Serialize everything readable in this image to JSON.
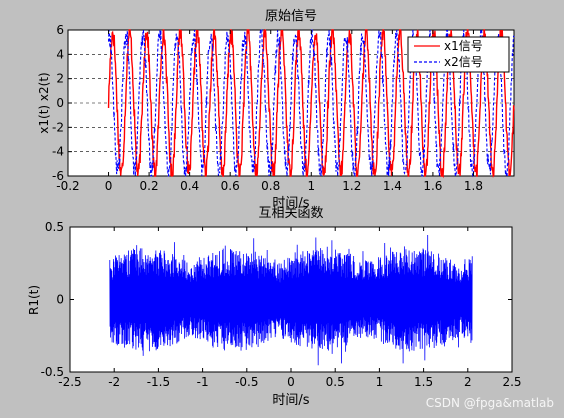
{
  "chart_data": [
    {
      "type": "line",
      "title": "原始信号",
      "xlabel": "时间/s",
      "ylabel": "x1(t) x2(t)",
      "xlim": [
        -0.2,
        2.0
      ],
      "ylim": [
        -6,
        6
      ],
      "xticks": [
        "-0.2",
        "0",
        "0.2",
        "0.4",
        "0.6",
        "0.8",
        "1",
        "1.2",
        "1.4",
        "1.6",
        "1.8"
      ],
      "yticks": [
        "-6",
        "-4",
        "-2",
        "0",
        "2",
        "4",
        "6"
      ],
      "grid": "y-dashed",
      "legend": "top-right",
      "colors": {
        "x1": "#ff0000",
        "x2": "#0000ff",
        "background": "#ffffff",
        "figure": "#c0c0c0"
      },
      "series": [
        {
          "name": "x1信号",
          "color": "#ff0000",
          "style": "solid",
          "freq_hz": 12,
          "amplitude": 5.8,
          "t_start": 0,
          "t_end": 2.0
        },
        {
          "name": "x2信号",
          "color": "#0000ff",
          "style": "dashed",
          "freq_hz": 12,
          "amplitude": 5.6,
          "t_start": 0,
          "t_end": 2.0
        }
      ]
    },
    {
      "type": "line",
      "title": "互相关函数",
      "xlabel": "时间/s",
      "ylabel": "R1(t)",
      "xlim": [
        -2.5,
        2.5
      ],
      "ylim": [
        -0.5,
        0.5
      ],
      "xticks": [
        "-2.5",
        "-2",
        "-1.5",
        "-1",
        "-0.5",
        "0",
        "0.5",
        "1",
        "1.5",
        "2",
        "2.5"
      ],
      "yticks": [
        "-0.5",
        "0",
        "0.5"
      ],
      "series": [
        {
          "name": "R1",
          "color": "#0000ff",
          "t_start": -2.05,
          "t_end": 2.05,
          "amplitude": 0.35
        }
      ]
    }
  ],
  "watermark": "CSDN @fpga&matlab"
}
